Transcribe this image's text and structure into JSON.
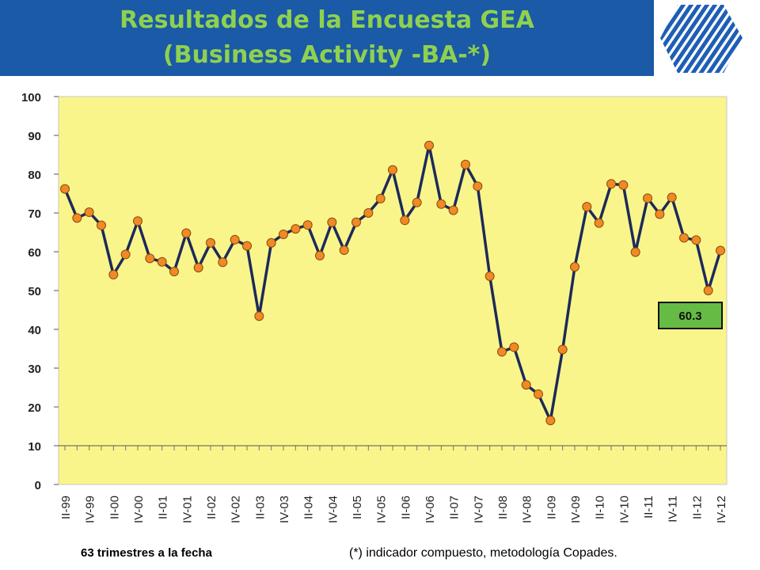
{
  "header": {
    "title_line1": "Resultados de la Encuesta GEA",
    "title_line2": "(Business Activity -BA-*)",
    "logo_icon": "striped-hexagon-logo-icon",
    "colors": {
      "band": "#1a5aa6",
      "title": "#8fd14f",
      "logo": "#1e5fb5"
    }
  },
  "chart_data": {
    "type": "line",
    "categories": [
      "II-99",
      "IV-99",
      "II-00",
      "IV-00",
      "II-01",
      "IV-01",
      "II-02",
      "IV-02",
      "II-03",
      "IV-03",
      "II-04",
      "IV-04",
      "II-05",
      "IV-05",
      "II-06",
      "IV-06",
      "II-07",
      "IV-07",
      "II-08",
      "IV-08",
      "II-09",
      "IV-09",
      "II-10",
      "IV-10",
      "II-11",
      "IV-11",
      "II-12",
      "IV-12"
    ],
    "x": [
      "II-99",
      "III-99",
      "IV-99",
      "I-00",
      "II-00",
      "III-00",
      "IV-00",
      "I-01",
      "II-01",
      "III-01",
      "IV-01",
      "I-02",
      "II-02",
      "III-02",
      "IV-02",
      "I-03",
      "II-03",
      "III-03",
      "IV-03",
      "I-04",
      "II-04",
      "III-04",
      "IV-04",
      "I-05",
      "II-05",
      "III-05",
      "IV-05",
      "I-06",
      "II-06",
      "III-06",
      "IV-06",
      "I-07",
      "II-07",
      "III-07",
      "IV-07",
      "I-08",
      "II-08",
      "III-08",
      "IV-08",
      "I-09",
      "II-09",
      "III-09",
      "IV-09",
      "I-10",
      "II-10",
      "III-10",
      "IV-10",
      "I-11",
      "II-11",
      "III-11",
      "IV-11",
      "I-12",
      "II-12",
      "III-12",
      "IV-12"
    ],
    "values": [
      76.2,
      68.7,
      70.2,
      66.8,
      54.1,
      59.3,
      67.9,
      58.3,
      57.4,
      54.9,
      64.8,
      55.9,
      62.3,
      57.3,
      63.1,
      61.5,
      43.4,
      62.3,
      64.5,
      65.9,
      66.9,
      59.0,
      67.6,
      60.4,
      67.6,
      70.0,
      73.7,
      81.1,
      68.1,
      72.7,
      87.4,
      72.3,
      70.7,
      82.5,
      76.9,
      53.7,
      34.2,
      35.4,
      25.7,
      23.3,
      16.5,
      34.8,
      56.1,
      71.6,
      67.4,
      77.5,
      77.2,
      59.9,
      73.8,
      69.7,
      74.0,
      63.6,
      63.0,
      50.0,
      60.3
    ],
    "ylim": [
      0,
      100
    ],
    "yticks": [
      "0",
      "10",
      "20",
      "30",
      "40",
      "50",
      "60",
      "70",
      "80",
      "90",
      "100"
    ],
    "grid": false,
    "highlight_label": "60.3",
    "colors": {
      "line": "#1c2a5a",
      "marker": "#f08a24",
      "plot_bg": "#faf58a",
      "label_box": "#66bb44"
    }
  },
  "footer": {
    "left_note": "63 trimestres a la fecha",
    "right_note": "(*) indicador compuesto, metodología Copades."
  }
}
